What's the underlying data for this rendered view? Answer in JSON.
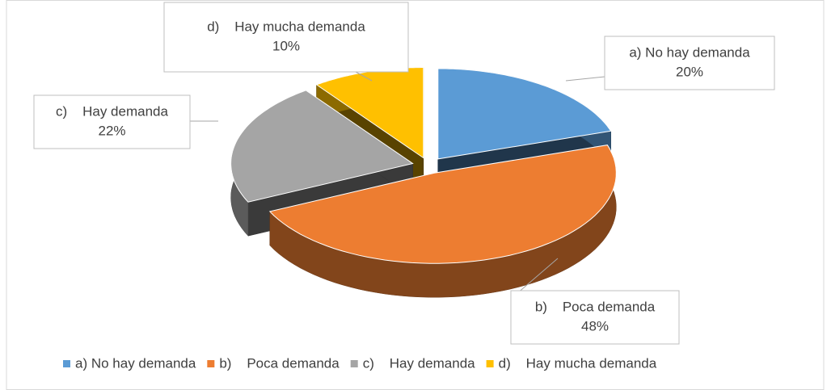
{
  "chart_data": {
    "type": "pie3d",
    "categories": [
      "a) No hay demanda",
      "b)    Poca demanda",
      "c)    Hay demanda",
      "d)    Hay mucha demanda"
    ],
    "values": [
      20,
      48,
      22,
      10
    ],
    "value_labels": [
      "20%",
      "48%",
      "22%",
      "10%"
    ],
    "colors": [
      "#5b9bd5",
      "#ed7d31",
      "#a5a5a5",
      "#ffc000"
    ],
    "legend": "bottom"
  }
}
